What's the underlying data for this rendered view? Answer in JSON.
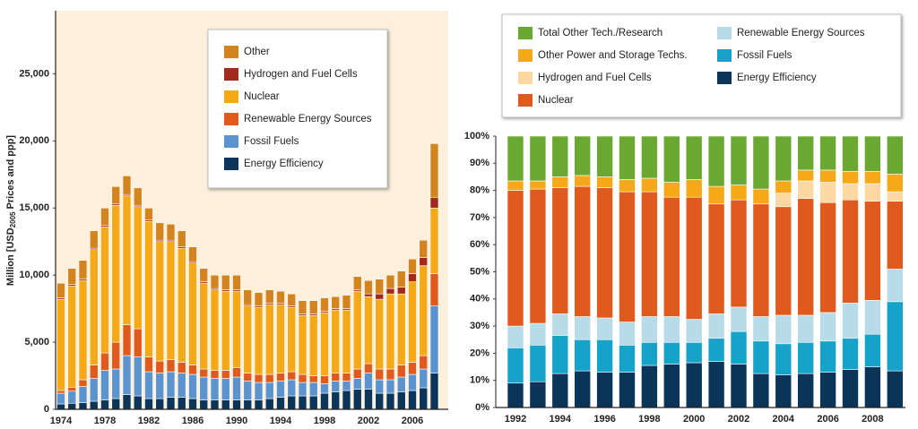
{
  "chart_data": [
    {
      "type": "bar",
      "stacked": true,
      "y_label": [
        "Million [USD",
        "2005",
        " Prices and ppp]"
      ],
      "categories": [
        "1974",
        null,
        null,
        null,
        "1978",
        null,
        null,
        null,
        "1982",
        null,
        null,
        null,
        "1986",
        null,
        null,
        null,
        "1990",
        null,
        null,
        null,
        "1994",
        null,
        null,
        null,
        "1998",
        null,
        null,
        null,
        "2002",
        null,
        null,
        null,
        "2006",
        null,
        null
      ],
      "series": [
        {
          "name": "Energy Efficiency",
          "color": "#0c3659",
          "values": [
            400,
            450,
            500,
            600,
            700,
            800,
            1100,
            1000,
            800,
            800,
            900,
            900,
            800,
            700,
            700,
            700,
            700,
            700,
            700,
            800,
            900,
            1000,
            1000,
            1000,
            1200,
            1300,
            1400,
            1500,
            1500,
            1200,
            1200,
            1300,
            1400,
            1600,
            2700
          ]
        },
        {
          "name": "Fossil Fuels",
          "color": "#5b93cf",
          "values": [
            800,
            900,
            1200,
            1700,
            2200,
            2200,
            2900,
            2900,
            2000,
            1900,
            1900,
            1800,
            1800,
            1700,
            1600,
            1600,
            1700,
            1400,
            1300,
            1200,
            1200,
            1200,
            1000,
            1000,
            700,
            800,
            700,
            800,
            1200,
            1000,
            1000,
            1100,
            1200,
            1400,
            5000
          ]
        },
        {
          "name": "Renewable Energy Sources",
          "color": "#e05a1e",
          "values": [
            200,
            300,
            500,
            1000,
            1300,
            2000,
            2300,
            2100,
            1100,
            900,
            900,
            800,
            700,
            600,
            600,
            600,
            700,
            600,
            600,
            600,
            600,
            600,
            600,
            500,
            600,
            600,
            600,
            700,
            700,
            800,
            800,
            900,
            900,
            1000,
            2400
          ]
        },
        {
          "name": "Nuclear",
          "color": "#f5a918",
          "values": [
            6800,
            7550,
            7400,
            8600,
            9400,
            10200,
            9600,
            9100,
            10100,
            8900,
            8800,
            8500,
            7600,
            6400,
            6000,
            5900,
            5700,
            5000,
            5000,
            5200,
            5100,
            4800,
            4400,
            4500,
            4700,
            4700,
            4700,
            5800,
            5000,
            5200,
            5600,
            5300,
            6000,
            6700,
            4900
          ]
        },
        {
          "name": "Hydrogen and Fuel  Cells",
          "color": "#a1291d",
          "values": [
            100,
            100,
            100,
            100,
            100,
            100,
            100,
            100,
            100,
            100,
            100,
            100,
            100,
            100,
            100,
            100,
            100,
            100,
            100,
            100,
            100,
            100,
            100,
            100,
            100,
            100,
            100,
            100,
            200,
            400,
            400,
            500,
            600,
            600,
            800
          ]
        },
        {
          "name": "Other",
          "color": "#d4841e",
          "values": [
            1100,
            1200,
            1400,
            1300,
            1300,
            1300,
            1400,
            1300,
            900,
            1300,
            1200,
            1200,
            1100,
            1000,
            1000,
            1100,
            1100,
            1100,
            1000,
            1000,
            900,
            900,
            1000,
            1000,
            1000,
            900,
            1000,
            1000,
            1000,
            1100,
            1000,
            1200,
            1100,
            1300,
            4000
          ]
        }
      ],
      "ylim": [
        0,
        29700
      ],
      "yticks": [
        0,
        {
          "value": 5000,
          "label": "5,000"
        },
        {
          "value": 10000,
          "label": "10,000"
        },
        {
          "value": 15000,
          "label": "15,000"
        },
        {
          "value": 20000,
          "label": "20,000"
        },
        {
          "value": 25000,
          "label": "25,000"
        }
      ],
      "grid": false,
      "background": "#fcefdc"
    },
    {
      "type": "bar",
      "stacked": true,
      "categories": [
        "1992",
        null,
        "1994",
        null,
        "1996",
        null,
        "1998",
        null,
        "2000",
        null,
        "2002",
        null,
        "2004",
        null,
        "2006",
        null,
        "2008",
        null
      ],
      "series": [
        {
          "name": "Energy Efficiency",
          "color": "#0b3558",
          "values": [
            9,
            9.5,
            12.5,
            13.5,
            13,
            13,
            15.5,
            16,
            16.5,
            17,
            16,
            12.5,
            12,
            12.5,
            13,
            14,
            15,
            13.5
          ]
        },
        {
          "name": "Fossil Fuels",
          "color": "#15a3c9",
          "values": [
            13,
            13.5,
            14,
            11.5,
            12,
            10,
            8.5,
            8,
            7.5,
            8.5,
            12,
            12,
            11.5,
            11.5,
            11.5,
            11.5,
            12,
            25.5
          ]
        },
        {
          "name": "Renewable Energy Sources",
          "color": "#b7dbe8",
          "values": [
            8,
            8,
            8,
            8.5,
            8,
            8.5,
            9.5,
            9.5,
            8.5,
            9,
            9,
            9,
            10.5,
            10,
            10.5,
            13,
            12.5,
            12
          ]
        },
        {
          "name": "Nuclear",
          "color": "#e05a1e",
          "values": [
            50,
            49.5,
            46.5,
            48,
            48,
            48,
            46,
            44,
            45,
            40.5,
            39.5,
            41.5,
            40,
            43,
            40.5,
            38,
            36.5,
            25
          ]
        },
        {
          "name": "Hydrogen and Fuel  Cells",
          "color": "#fcd9a3",
          "values": [
            0,
            0,
            0,
            0,
            0,
            0,
            0,
            0,
            0,
            0,
            0,
            0,
            5,
            6.5,
            7.5,
            6,
            6.5,
            3.5
          ]
        },
        {
          "name": "Other Power and Storage Techs.",
          "color": "#f5a918",
          "values": [
            3.5,
            3,
            4,
            4,
            4,
            4.5,
            5,
            5.5,
            6.5,
            6.5,
            5.5,
            5.5,
            4.5,
            4,
            4.5,
            4.5,
            4.5,
            6.5
          ]
        },
        {
          "name": "Total Other Tech./Research",
          "color": "#6aa832",
          "values": [
            16.5,
            16.5,
            15,
            14.5,
            15,
            16,
            15.5,
            17,
            16,
            18.5,
            18,
            19.5,
            16.5,
            12.5,
            12.5,
            13,
            13,
            14
          ]
        }
      ],
      "ylim": [
        0,
        100
      ],
      "yticks": [
        {
          "value": 0,
          "label": "0%"
        },
        {
          "value": 10,
          "label": "10%"
        },
        {
          "value": 20,
          "label": "20%"
        },
        {
          "value": 30,
          "label": "30%"
        },
        {
          "value": 40,
          "label": "40%"
        },
        {
          "value": 50,
          "label": "50%"
        },
        {
          "value": 60,
          "label": "60%"
        },
        {
          "value": 70,
          "label": "70%"
        },
        {
          "value": 80,
          "label": "80%"
        },
        {
          "value": 90,
          "label": "90%"
        },
        {
          "value": 100,
          "label": "100%"
        }
      ],
      "grid": false,
      "background": "#ffffff"
    }
  ]
}
